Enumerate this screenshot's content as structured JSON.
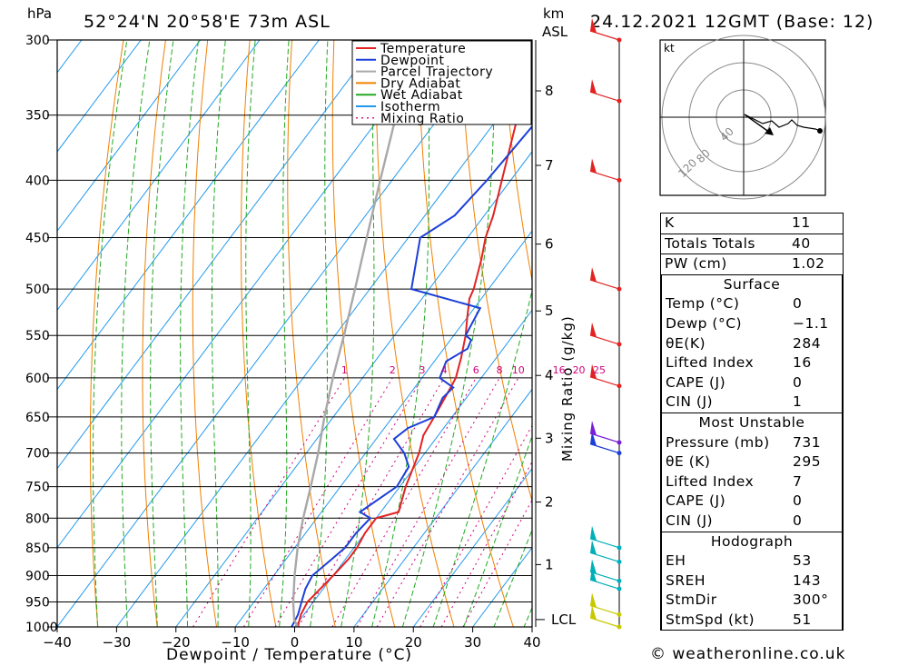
{
  "header": {
    "location": "52°24'N  20°58'E  73m  ASL",
    "date": "24.12.2021  12GMT  (Base: 12)",
    "p_unit": "hPa",
    "km_unit": "km",
    "asl": "ASL"
  },
  "chart_data": {
    "type": "line",
    "xlabel": "Dewpoint / Temperature (°C)",
    "ylabel_right": "Mixing Ratio (g/kg)",
    "xlim": [
      -40,
      40
    ],
    "ylim": [
      1000,
      300
    ],
    "pressure_ticks": [
      1000,
      950,
      900,
      850,
      800,
      750,
      700,
      650,
      600,
      550,
      500,
      450,
      400,
      350,
      300
    ],
    "temp_ticks": [
      -40,
      -30,
      -20,
      -10,
      0,
      10,
      20,
      30,
      40
    ],
    "km_ticks": [
      {
        "label": "1",
        "p": 880
      },
      {
        "label": "2",
        "p": 774
      },
      {
        "label": "3",
        "p": 679
      },
      {
        "label": "4",
        "p": 597
      },
      {
        "label": "5",
        "p": 523
      },
      {
        "label": "6",
        "p": 456
      },
      {
        "label": "7",
        "p": 388
      },
      {
        "label": "8",
        "p": 333
      }
    ],
    "lcl": {
      "label": "LCL",
      "p": 985
    },
    "mixing_ratios": [
      1,
      2,
      3,
      4,
      6,
      8,
      10,
      16,
      20,
      25
    ],
    "mixing_label_p": 600,
    "legend": [
      {
        "name": "Temperature",
        "color": "#e32222",
        "dash": "none"
      },
      {
        "name": "Dewpoint",
        "color": "#1c3fd8",
        "dash": "none"
      },
      {
        "name": "Parcel Trajectory",
        "color": "#a8a8a8",
        "dash": "none"
      },
      {
        "name": "Dry Adiabat",
        "color": "#f08000",
        "dash": "none"
      },
      {
        "name": "Wet Adiabat",
        "color": "#22aa22",
        "dash": "none"
      },
      {
        "name": "Isotherm",
        "color": "#2299ee",
        "dash": "none"
      },
      {
        "name": "Mixing Ratio",
        "color": "#d0007a",
        "dash": "2,4"
      }
    ],
    "series": [
      {
        "name": "Temperature",
        "color": "#e32222",
        "points": [
          [
            1000,
            0.5
          ],
          [
            975,
            -0.5
          ],
          [
            950,
            -1
          ],
          [
            925,
            -0.5
          ],
          [
            900,
            0
          ],
          [
            870,
            0.5
          ],
          [
            850,
            0.5
          ],
          [
            825,
            0
          ],
          [
            800,
            0
          ],
          [
            790,
            3
          ],
          [
            750,
            1
          ],
          [
            700,
            -1
          ],
          [
            675,
            -2.5
          ],
          [
            650,
            -3
          ],
          [
            630,
            -3.5
          ],
          [
            610,
            -4
          ],
          [
            600,
            -4.3
          ],
          [
            575,
            -6
          ],
          [
            550,
            -8
          ],
          [
            530,
            -10
          ],
          [
            510,
            -12
          ],
          [
            500,
            -12.5
          ],
          [
            470,
            -15
          ],
          [
            450,
            -17
          ],
          [
            430,
            -18.5
          ],
          [
            400,
            -21.5
          ],
          [
            350,
            -27
          ],
          [
            320,
            -31
          ],
          [
            300,
            -33.5
          ]
        ]
      },
      {
        "name": "Dewpoint",
        "color": "#1c3fd8",
        "points": [
          [
            1000,
            -0.5
          ],
          [
            975,
            -1
          ],
          [
            950,
            -2
          ],
          [
            925,
            -3
          ],
          [
            900,
            -3.5
          ],
          [
            875,
            -2.5
          ],
          [
            850,
            -1.5
          ],
          [
            825,
            -1.5
          ],
          [
            800,
            -1
          ],
          [
            790,
            -3.5
          ],
          [
            750,
            -0.5
          ],
          [
            720,
            -1
          ],
          [
            700,
            -3.5
          ],
          [
            680,
            -7
          ],
          [
            665,
            -6
          ],
          [
            650,
            -3
          ],
          [
            625,
            -4
          ],
          [
            612,
            -3.5
          ],
          [
            600,
            -7
          ],
          [
            580,
            -8
          ],
          [
            565,
            -6
          ],
          [
            555,
            -6.5
          ],
          [
            550,
            -8
          ],
          [
            520,
            -9
          ],
          [
            500,
            -23
          ],
          [
            450,
            -28
          ],
          [
            430,
            -25
          ],
          [
            400,
            -24
          ],
          [
            350,
            -23
          ],
          [
            320,
            -21.5
          ],
          [
            310,
            -21.5
          ],
          [
            300,
            -22
          ]
        ]
      },
      {
        "name": "Parcel Trajectory",
        "color": "#a8a8a8",
        "points": [
          [
            1000,
            0.5
          ],
          [
            985,
            -1
          ],
          [
            950,
            -3.4
          ],
          [
            900,
            -6.5
          ],
          [
            850,
            -9.5
          ],
          [
            800,
            -12.3
          ],
          [
            750,
            -15
          ],
          [
            700,
            -18
          ],
          [
            650,
            -21.5
          ],
          [
            600,
            -25
          ],
          [
            550,
            -28.5
          ],
          [
            500,
            -32.5
          ],
          [
            450,
            -37
          ],
          [
            400,
            -42
          ],
          [
            350,
            -47.5
          ],
          [
            300,
            -54
          ]
        ]
      }
    ]
  },
  "wind_barbs": [
    {
      "p": 1000,
      "color": "#c8c800"
    },
    {
      "p": 975,
      "color": "#c8c800"
    },
    {
      "p": 925,
      "color": "#00b0b8"
    },
    {
      "p": 910,
      "color": "#00b0b8"
    },
    {
      "p": 875,
      "color": "#00b0b8"
    },
    {
      "p": 850,
      "color": "#00b0b8"
    },
    {
      "p": 700,
      "color": "#1c3fd8"
    },
    {
      "p": 685,
      "color": "#7a1fd8"
    },
    {
      "p": 610,
      "color": "#e32222"
    },
    {
      "p": 560,
      "color": "#e32222"
    },
    {
      "p": 500,
      "color": "#e32222"
    },
    {
      "p": 400,
      "color": "#e32222"
    },
    {
      "p": 340,
      "color": "#e32222"
    },
    {
      "p": 300,
      "color": "#e32222"
    }
  ],
  "hodograph": {
    "unit": "kt",
    "ring_labels": [
      "40",
      "80",
      "120"
    ]
  },
  "indices": [
    {
      "k": "K",
      "v": "11"
    },
    {
      "k": "Totals Totals",
      "v": "40"
    },
    {
      "k": "PW (cm)",
      "v": "1.02"
    }
  ],
  "surface": {
    "title": "Surface",
    "rows": [
      {
        "k": "Temp (°C)",
        "v": "0"
      },
      {
        "k": "Dewp (°C)",
        "v": "−1.1"
      },
      {
        "k": "θE(K)",
        "v": "284"
      },
      {
        "k": "Lifted Index",
        "v": "16"
      },
      {
        "k": "CAPE (J)",
        "v": "0"
      },
      {
        "k": "CIN (J)",
        "v": "1"
      }
    ]
  },
  "most_unstable": {
    "title": "Most Unstable",
    "rows": [
      {
        "k": "Pressure (mb)",
        "v": "731"
      },
      {
        "k": "θE (K)",
        "v": "295"
      },
      {
        "k": "Lifted Index",
        "v": "7"
      },
      {
        "k": "CAPE (J)",
        "v": "0"
      },
      {
        "k": "CIN (J)",
        "v": "0"
      }
    ]
  },
  "hodograph_table": {
    "title": "Hodograph",
    "rows": [
      {
        "k": "EH",
        "v": "53"
      },
      {
        "k": "SREH",
        "v": "143"
      },
      {
        "k": "StmDir",
        "v": "300°"
      },
      {
        "k": "StmSpd (kt)",
        "v": "51"
      }
    ]
  },
  "footer": "© weatheronline.co.uk"
}
